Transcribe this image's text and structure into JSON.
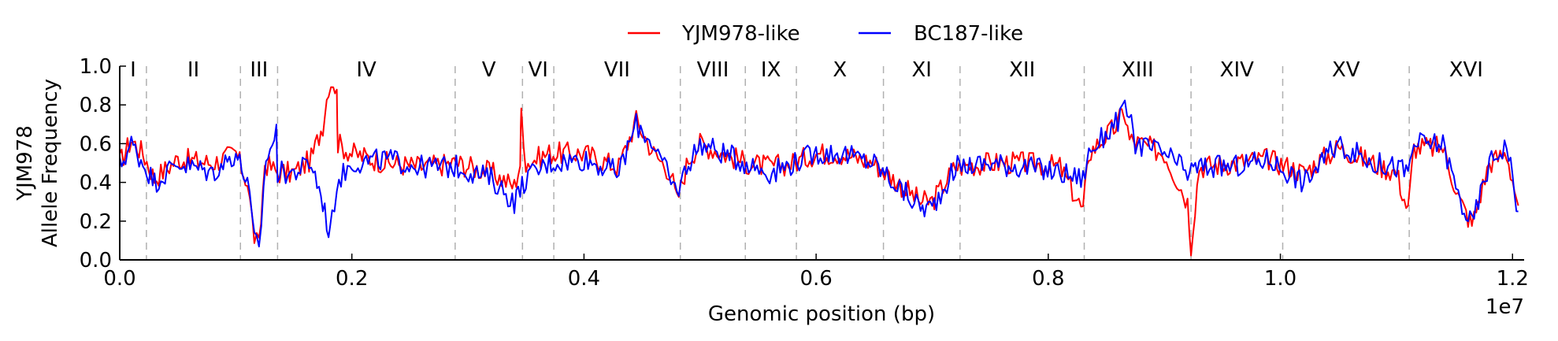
{
  "chart_data": {
    "type": "line",
    "title": "",
    "xlabel": "Genomic position (bp)",
    "ylabel_lines": [
      "YJM978",
      "Allele Frequency"
    ],
    "x_offset_label": "1e7",
    "xlim": [
      0,
      12100000.0
    ],
    "ylim": [
      0,
      1.0
    ],
    "x_ticks": [
      0,
      2000000,
      4000000,
      6000000,
      8000000,
      10000000,
      12000000
    ],
    "x_tick_labels": [
      "0.0",
      "0.2",
      "0.4",
      "0.6",
      "0.8",
      "1.0",
      "1.2"
    ],
    "y_ticks": [
      0,
      0.2,
      0.4,
      0.6,
      0.8,
      1.0
    ],
    "y_tick_labels": [
      "0.0",
      "0.2",
      "0.4",
      "0.6",
      "0.8",
      "1.0"
    ],
    "grid": false,
    "legend_position": "top-center",
    "chromosome_boundaries": [
      230000,
      1040000,
      1360000,
      2890000,
      3470000,
      3740000,
      4830000,
      5390000,
      5830000,
      6580000,
      7240000,
      8310000,
      9230000,
      10020000,
      11110000
    ],
    "chromosomes": [
      {
        "label": "I",
        "mid": 115000
      },
      {
        "label": "II",
        "mid": 635000
      },
      {
        "label": "III",
        "mid": 1200000
      },
      {
        "label": "IV",
        "mid": 2125000
      },
      {
        "label": "V",
        "mid": 3180000
      },
      {
        "label": "VI",
        "mid": 3605000
      },
      {
        "label": "VII",
        "mid": 4285000
      },
      {
        "label": "VIII",
        "mid": 5110000
      },
      {
        "label": "IX",
        "mid": 5610000
      },
      {
        "label": "X",
        "mid": 6205000
      },
      {
        "label": "XI",
        "mid": 6910000
      },
      {
        "label": "XII",
        "mid": 7775000
      },
      {
        "label": "XIII",
        "mid": 8770000
      },
      {
        "label": "XIV",
        "mid": 9625000
      },
      {
        "label": "XV",
        "mid": 10565000
      },
      {
        "label": "XVI",
        "mid": 11600000
      }
    ],
    "series": [
      {
        "name": "YJM978-like",
        "color": "#ff0000",
        "points": [
          [
            0,
            0.5
          ],
          [
            100000,
            0.62
          ],
          [
            200000,
            0.55
          ],
          [
            300000,
            0.42
          ],
          [
            500000,
            0.52
          ],
          [
            800000,
            0.5
          ],
          [
            1000000,
            0.55
          ],
          [
            1100000,
            0.4
          ],
          [
            1160000,
            0.12
          ],
          [
            1200000,
            0.06
          ],
          [
            1250000,
            0.5
          ],
          [
            1360000,
            0.45
          ],
          [
            1500000,
            0.45
          ],
          [
            1650000,
            0.52
          ],
          [
            1750000,
            0.7
          ],
          [
            1800000,
            0.9
          ],
          [
            1840000,
            0.93
          ],
          [
            1870000,
            0.85
          ],
          [
            1880000,
            0.6
          ],
          [
            2000000,
            0.55
          ],
          [
            2300000,
            0.5
          ],
          [
            2600000,
            0.48
          ],
          [
            2900000,
            0.5
          ],
          [
            3200000,
            0.45
          ],
          [
            3400000,
            0.38
          ],
          [
            3450000,
            0.5
          ],
          [
            3460000,
            0.78
          ],
          [
            3500000,
            0.5
          ],
          [
            3700000,
            0.55
          ],
          [
            4000000,
            0.55
          ],
          [
            4300000,
            0.48
          ],
          [
            4450000,
            0.72
          ],
          [
            4600000,
            0.55
          ],
          [
            4750000,
            0.45
          ],
          [
            4800000,
            0.3
          ],
          [
            4900000,
            0.52
          ],
          [
            5000000,
            0.6
          ],
          [
            5200000,
            0.55
          ],
          [
            5400000,
            0.5
          ],
          [
            5600000,
            0.48
          ],
          [
            5800000,
            0.5
          ],
          [
            6000000,
            0.55
          ],
          [
            6200000,
            0.55
          ],
          [
            6500000,
            0.5
          ],
          [
            6700000,
            0.4
          ],
          [
            6900000,
            0.3
          ],
          [
            7000000,
            0.3
          ],
          [
            7200000,
            0.48
          ],
          [
            7500000,
            0.5
          ],
          [
            7800000,
            0.5
          ],
          [
            8100000,
            0.48
          ],
          [
            8300000,
            0.25
          ],
          [
            8350000,
            0.55
          ],
          [
            8600000,
            0.7
          ],
          [
            8650000,
            0.78
          ],
          [
            8700000,
            0.62
          ],
          [
            9000000,
            0.55
          ],
          [
            9200000,
            0.3
          ],
          [
            9230000,
            0.08
          ],
          [
            9300000,
            0.48
          ],
          [
            9600000,
            0.5
          ],
          [
            9900000,
            0.52
          ],
          [
            10200000,
            0.45
          ],
          [
            10500000,
            0.58
          ],
          [
            10800000,
            0.5
          ],
          [
            11000000,
            0.45
          ],
          [
            11100000,
            0.25
          ],
          [
            11150000,
            0.58
          ],
          [
            11400000,
            0.58
          ],
          [
            11550000,
            0.3
          ],
          [
            11650000,
            0.18
          ],
          [
            11800000,
            0.5
          ],
          [
            11950000,
            0.55
          ],
          [
            12050000,
            0.28
          ]
        ]
      },
      {
        "name": "BC187-like",
        "color": "#0000ff",
        "points": [
          [
            0,
            0.48
          ],
          [
            100000,
            0.6
          ],
          [
            200000,
            0.5
          ],
          [
            300000,
            0.4
          ],
          [
            500000,
            0.5
          ],
          [
            800000,
            0.45
          ],
          [
            1000000,
            0.55
          ],
          [
            1100000,
            0.4
          ],
          [
            1160000,
            0.1
          ],
          [
            1200000,
            0.05
          ],
          [
            1260000,
            0.52
          ],
          [
            1350000,
            0.65
          ],
          [
            1360000,
            0.45
          ],
          [
            1500000,
            0.45
          ],
          [
            1650000,
            0.5
          ],
          [
            1750000,
            0.3
          ],
          [
            1800000,
            0.15
          ],
          [
            1830000,
            0.2
          ],
          [
            1870000,
            0.4
          ],
          [
            2000000,
            0.5
          ],
          [
            2300000,
            0.52
          ],
          [
            2600000,
            0.48
          ],
          [
            2900000,
            0.48
          ],
          [
            3200000,
            0.42
          ],
          [
            3400000,
            0.3
          ],
          [
            3500000,
            0.42
          ],
          [
            3700000,
            0.5
          ],
          [
            4000000,
            0.52
          ],
          [
            4300000,
            0.45
          ],
          [
            4450000,
            0.7
          ],
          [
            4600000,
            0.6
          ],
          [
            4750000,
            0.4
          ],
          [
            4800000,
            0.35
          ],
          [
            4900000,
            0.5
          ],
          [
            5000000,
            0.6
          ],
          [
            5200000,
            0.55
          ],
          [
            5400000,
            0.5
          ],
          [
            5600000,
            0.45
          ],
          [
            5800000,
            0.5
          ],
          [
            6000000,
            0.55
          ],
          [
            6200000,
            0.55
          ],
          [
            6500000,
            0.5
          ],
          [
            6700000,
            0.38
          ],
          [
            6900000,
            0.27
          ],
          [
            7000000,
            0.27
          ],
          [
            7200000,
            0.48
          ],
          [
            7500000,
            0.5
          ],
          [
            7800000,
            0.48
          ],
          [
            8100000,
            0.45
          ],
          [
            8300000,
            0.42
          ],
          [
            8350000,
            0.55
          ],
          [
            8600000,
            0.72
          ],
          [
            8680000,
            0.78
          ],
          [
            8750000,
            0.6
          ],
          [
            9000000,
            0.55
          ],
          [
            9200000,
            0.45
          ],
          [
            9300000,
            0.48
          ],
          [
            9600000,
            0.48
          ],
          [
            9900000,
            0.52
          ],
          [
            10200000,
            0.4
          ],
          [
            10500000,
            0.6
          ],
          [
            10800000,
            0.5
          ],
          [
            11000000,
            0.48
          ],
          [
            11100000,
            0.45
          ],
          [
            11150000,
            0.6
          ],
          [
            11400000,
            0.6
          ],
          [
            11550000,
            0.3
          ],
          [
            11650000,
            0.18
          ],
          [
            11800000,
            0.5
          ],
          [
            11950000,
            0.6
          ],
          [
            12050000,
            0.25
          ]
        ]
      }
    ]
  }
}
